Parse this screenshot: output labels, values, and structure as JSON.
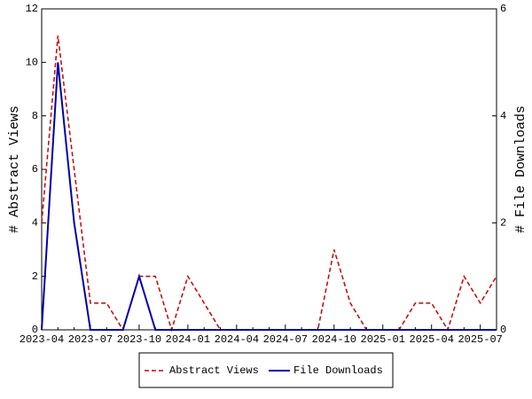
{
  "chart_data": {
    "type": "line",
    "categories": [
      "2023-04",
      null,
      null,
      "2023-07",
      null,
      null,
      "2023-10",
      null,
      null,
      "2024-01",
      null,
      null,
      "2024-04",
      null,
      null,
      "2024-07",
      null,
      null,
      "2024-10",
      null,
      null,
      "2025-01",
      null,
      null,
      "2025-04",
      null,
      null,
      "2025-07",
      null
    ],
    "series": [
      {
        "name": "Abstract Views",
        "color": "#cc0000",
        "dash": true,
        "values": [
          4,
          11,
          6,
          1,
          1,
          0,
          2,
          2,
          0,
          2,
          1,
          0,
          0,
          0,
          0,
          0,
          0,
          0,
          3,
          1,
          0,
          0,
          0,
          1,
          1,
          0,
          2,
          1,
          2
        ]
      },
      {
        "name": "File Downloads",
        "color": "#0000aa",
        "axis": "y2",
        "values": [
          0,
          5,
          2,
          0,
          0,
          0,
          1,
          0,
          0,
          0,
          0,
          0,
          0,
          0,
          0,
          0,
          0,
          0,
          0,
          0,
          0,
          0,
          0,
          0,
          0,
          0,
          0,
          0,
          0
        ]
      }
    ],
    "y_label": "# Abstract Views",
    "y2_label": "# File Downloads",
    "ylim": [
      0,
      12
    ],
    "yticks": [
      0,
      2,
      4,
      6,
      8,
      10,
      12
    ],
    "y2lim": [
      0,
      6
    ],
    "y2ticks": [
      0,
      2,
      4,
      6
    ],
    "legend": "bottom"
  }
}
